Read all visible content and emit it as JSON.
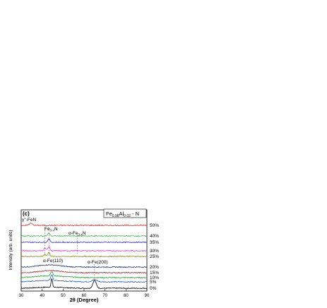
{
  "chart_data": {
    "type": "line",
    "panel_label": "(c)",
    "composition_box": "Fe0.98Al0.02 - N",
    "xlabel": "2θ (Degree)",
    "ylabel": "Intensity (arb. units)",
    "xlim": [
      30,
      90
    ],
    "xticks": [
      30,
      40,
      50,
      60,
      70,
      80,
      90
    ],
    "grid": false,
    "series": [
      {
        "name": "0%",
        "color": "#000000"
      },
      {
        "name": "5%",
        "color": "#1e5fd0"
      },
      {
        "name": "10%",
        "color": "#18a02a"
      },
      {
        "name": "15%",
        "color": "#b0202a"
      },
      {
        "name": "20%",
        "color": "#1a2f9e"
      },
      {
        "name": "25%",
        "color": "#8f8f18"
      },
      {
        "name": "30%",
        "color": "#e040c8"
      },
      {
        "name": "35%",
        "color": "#3030d8"
      },
      {
        "name": "40%",
        "color": "#30c040"
      },
      {
        "name": "50%",
        "color": "#e02020"
      }
    ],
    "peaks": {
      "alpha_fe_110": 44.6,
      "alpha_fe_200": 65.0,
      "fe3n_1": 41.3,
      "fe3n_2": 43.2,
      "alpha_fe3n": 56.8,
      "gamma_fen": 34.5
    },
    "annotations": [
      {
        "text": "γ''-FeN"
      },
      {
        "text": "Fe3-xN"
      },
      {
        "text": "α-Fe3-xN"
      },
      {
        "text": "α-Fe(110)"
      },
      {
        "text": "α-Fe(200)"
      }
    ]
  }
}
